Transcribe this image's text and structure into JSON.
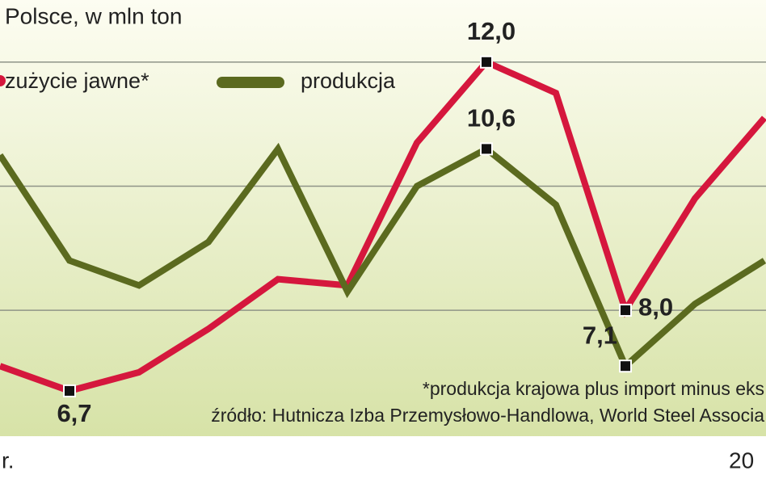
{
  "chart_data": {
    "type": "line",
    "title": "Polsce, w mln ton",
    "categories": [
      null,
      null,
      null,
      null,
      null,
      null,
      null,
      null,
      null,
      null,
      null,
      null
    ],
    "series": [
      {
        "name": "zużycie jawne*",
        "color": "#d5173d",
        "values": [
          7.1,
          6.7,
          7.0,
          7.7,
          8.5,
          8.4,
          10.7,
          12.0,
          11.5,
          8.0,
          9.8,
          11.1
        ],
        "value_labels": [
          null,
          "6,7",
          null,
          null,
          null,
          null,
          null,
          "12,0",
          null,
          "8,0",
          null,
          null
        ]
      },
      {
        "name": "produkcja",
        "color": "#5b6a1f",
        "values": [
          10.5,
          8.8,
          8.4,
          9.1,
          10.6,
          8.3,
          10.0,
          10.6,
          9.7,
          7.1,
          8.1,
          8.8
        ],
        "value_labels": [
          null,
          null,
          null,
          null,
          null,
          null,
          null,
          "10,6",
          null,
          "7,1",
          null,
          null
        ]
      }
    ],
    "ylim": [
      5.28,
      13.0
    ],
    "yticks": [
      8,
      10,
      12
    ],
    "grid": true,
    "x_labels": [
      "r.",
      "20"
    ],
    "notes": [
      "*produkcja krajowa plus import minus eks",
      "źródło: Hutnicza Izba Przemysłowo-Handlowa, World Steel Associa"
    ]
  }
}
